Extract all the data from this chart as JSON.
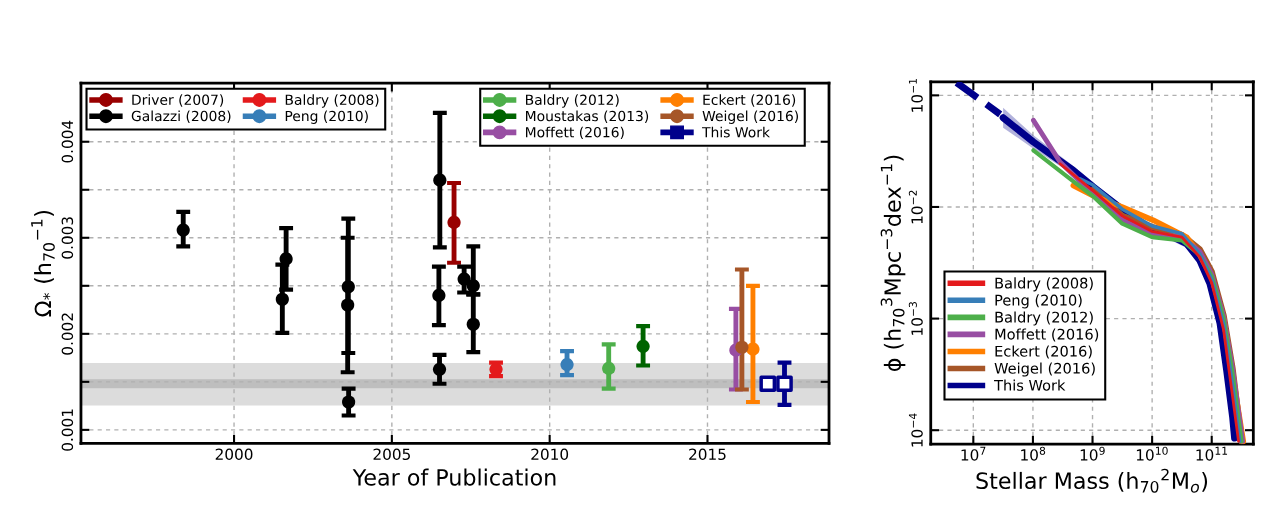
{
  "chart_data": [
    {
      "type": "scatter",
      "xlabel": "Year of Publication",
      "ylabel": "Ω$_{*}$ (h$_{70}$$^{−1}$)",
      "xlim": [
        1995.15,
        2018.85
      ],
      "ylim": [
        0.00086,
        0.00461
      ],
      "xticks": [
        2000,
        2005,
        2010,
        2015
      ],
      "yticks": [
        0.001,
        {
          "value": 0.0015,
          "label": null
        },
        0.002,
        {
          "value": 0.0025,
          "label": null
        },
        0.003,
        {
          "value": 0.0035,
          "label": null
        },
        0.004
      ],
      "grid": true,
      "legend": "top",
      "marker": "circle",
      "bands": [
        {
          "axis": "y",
          "from": 0.001253,
          "to": 0.001695,
          "color": "#dcdcdc"
        },
        {
          "axis": "y",
          "from": 0.001434,
          "to": 0.001528,
          "color": "#bebebe"
        }
      ],
      "series": [
        {
          "name": "Driver (2007)",
          "color": "#990000",
          "x": [
            2006.97
          ],
          "values": [
            0.00316
          ],
          "errors": [
            [
              0.00274,
              0.00357
            ]
          ]
        },
        {
          "name": "Galazzi (2008)",
          "color": "#000000",
          "x": [
            1998.39,
            2001.53,
            2001.65,
            2003.62,
            2003.6,
            2003.63,
            2006.52,
            2006.49,
            2006.51,
            2007.29,
            2007.58,
            2007.58
          ],
          "values": [
            0.00308,
            0.00236,
            0.00278,
            0.00249,
            0.0023,
            0.00129,
            0.0036,
            0.0024,
            0.00163,
            0.00257,
            0.0025,
            0.0021
          ],
          "errors": [
            [
              0.00291,
              0.00327
            ],
            [
              0.00201,
              0.00272
            ],
            [
              0.00246,
              0.0031
            ],
            [
              0.0018,
              0.0032
            ],
            [
              0.0016,
              0.003
            ],
            [
              0.00115,
              0.00143
            ],
            [
              0.0029,
              0.0043
            ],
            [
              0.00209,
              0.0027
            ],
            [
              0.00148,
              0.00178
            ],
            [
              0.00243,
              0.0027
            ],
            [
              0.00241,
              0.00291
            ],
            [
              0.00181,
              0.00241
            ]
          ]
        },
        {
          "name": "Baldry (2008)",
          "color": "#e41a1c",
          "x": [
            2008.3
          ],
          "values": [
            0.00163
          ],
          "errors": [
            [
              0.00156,
              0.0017
            ]
          ]
        },
        {
          "name": "Peng (2010)",
          "color": "#377eb8",
          "x": [
            2010.55
          ],
          "values": [
            0.00168
          ],
          "errors": [
            [
              0.00157,
              0.00182
            ]
          ]
        },
        {
          "name": "Baldry (2012)",
          "color": "#4daf4a",
          "x": [
            2011.87
          ],
          "values": [
            0.00164
          ],
          "errors": [
            [
              0.00143,
              0.00189
            ]
          ]
        },
        {
          "name": "Moustakas (2013)",
          "color": "#006400",
          "x": [
            2012.96
          ],
          "values": [
            0.00187
          ],
          "errors": [
            [
              0.00167,
              0.00208
            ]
          ]
        },
        {
          "name": "Moffett (2016)",
          "color": "#984ea3",
          "x": [
            2015.9
          ],
          "values": [
            0.00183
          ],
          "errors": [
            [
              0.00142,
              0.00226
            ]
          ]
        },
        {
          "name": "Eckert (2016)",
          "color": "#ff7f00",
          "x": [
            2016.44
          ],
          "values": [
            0.00184
          ],
          "errors": [
            [
              0.00129,
              0.0025
            ]
          ]
        },
        {
          "name": "Weigel (2016)",
          "color": "#a65628",
          "x": [
            2016.09
          ],
          "values": [
            0.00186
          ],
          "errors": [
            [
              0.00142,
              0.00267
            ]
          ]
        },
        {
          "name": "This Work",
          "color": "#00008b",
          "marker": "square",
          "x": [
            2016.91,
            2017.44
          ],
          "values": [
            0.00148,
            0.00148
          ],
          "errors": [
            [
              0.00143,
              0.00152
            ],
            [
              0.00126,
              0.0017
            ]
          ]
        }
      ]
    },
    {
      "type": "line",
      "xlabel": "Stellar Mass (h$_{70}$$^{2}$M$_{o}$)",
      "ylabel": "ϕ (h$_{70}$$^{3}$Mpc$^{−3}$dex$^{−1}$)",
      "log": "xy",
      "xlim": [
        1930000.0,
        499000000000.0
      ],
      "ylim": [
        7.5e-05,
        0.132
      ],
      "xticks": [
        {
          "value": 10000000.0,
          "label": "10$^{7}$"
        },
        {
          "value": 100000000.0,
          "label": "10$^{8}$"
        },
        {
          "value": 1000000000.0,
          "label": "10$^{9}$"
        },
        {
          "value": 10000000000.0,
          "label": "10$^{10}$"
        },
        {
          "value": 100000000000.0,
          "label": "10$^{11}$"
        }
      ],
      "yticks": [
        {
          "value": 0.0001,
          "label": "10$^{−4}$"
        },
        {
          "value": 0.001,
          "label": "10$^{−3}$"
        },
        {
          "value": 0.01,
          "label": "10$^{−2}$"
        },
        {
          "value": 0.1,
          "label": "10$^{−1}$"
        }
      ],
      "grid": true,
      "legend": "bottom left",
      "series": [
        {
          "name": "Baldry (2008)",
          "color": "#e41a1c",
          "x": [
            285000000.0,
            1000000000.0,
            3160000000.0,
            10000000000.0,
            31600000000.0,
            63100000000.0,
            100000000000.0,
            158000000000.0,
            224000000000.0,
            282000000000.0
          ],
          "values": [
            0.0244,
            0.0141,
            0.00832,
            0.00603,
            0.00537,
            0.00355,
            0.00209,
            0.000794,
            0.0002,
            7.94e-05
          ]
        },
        {
          "name": "Peng (2010)",
          "color": "#377eb8",
          "x": [
            617000000.0,
            1000000000.0,
            3160000000.0,
            10000000000.0,
            31600000000.0,
            63100000000.0,
            100000000000.0,
            158000000000.0,
            224000000000.0,
            295000000000.0
          ],
          "values": [
            0.0179,
            0.0158,
            0.00955,
            0.00676,
            0.00575,
            0.0038,
            0.00224,
            0.000891,
            0.000251,
            7.94e-05
          ]
        },
        {
          "name": "Baldry (2012)",
          "color": "#4daf4a",
          "x": [
            102000000.0,
            501000000.0,
            1000000000.0,
            3160000000.0,
            10000000000.0,
            31600000000.0,
            63100000000.0,
            100000000000.0,
            158000000000.0,
            224000000000.0,
            316000000000.0
          ],
          "values": [
            0.0322,
            0.0166,
            0.0126,
            0.00708,
            0.00537,
            0.00501,
            0.00372,
            0.0024,
            0.001,
            0.000316,
            7.94e-05
          ]
        },
        {
          "name": "Moffett (2016)",
          "color": "#984ea3",
          "x": [
            102000000.0,
            285000000.0,
            1000000000.0,
            3160000000.0,
            10000000000.0,
            31600000000.0,
            63100000000.0,
            100000000000.0,
            158000000000.0,
            224000000000.0,
            331000000000.0
          ],
          "values": [
            0.0597,
            0.0253,
            0.0132,
            0.00759,
            0.00575,
            0.00537,
            0.00398,
            0.00251,
            0.00105,
            0.000355,
            7.94e-05
          ]
        },
        {
          "name": "Eckert (2016)",
          "color": "#ff7f00",
          "x": [
            476000000.0,
            1030000000.0,
            3160000000.0,
            10500000000.0,
            38000000000.0,
            63100000000.0,
            100000000000.0,
            158000000000.0,
            224000000000.0,
            339000000000.0
          ],
          "values": [
            0.0156,
            0.0126,
            0.01,
            0.00759,
            0.00537,
            0.00372,
            0.00234,
            0.001,
            0.000316,
            7.94e-05
          ]
        },
        {
          "name": "Weigel (2016)",
          "color": "#a65628",
          "x": [
            1000000000.0,
            3160000000.0,
            10000000000.0,
            31600000000.0,
            63100000000.0,
            100000000000.0,
            158000000000.0,
            224000000000.0,
            316000000000.0
          ],
          "values": [
            0.0141,
            0.00832,
            0.00661,
            0.00562,
            0.00417,
            0.00263,
            0.00107,
            0.000355,
            7.94e-05
          ]
        },
        {
          "name": "This Work",
          "color": "#00008b",
          "x": [
            31600000.0,
            102000000.0,
            476000000.0,
            1030000000.0,
            3290000000.0,
            10500000000.0,
            22700000000.0,
            38000000000.0,
            63100000000.0,
            93300000000.0,
            138000000000.0,
            178000000000.0,
            224000000000.0,
            242000000000.0
          ],
          "values": [
            0.0631,
            0.0382,
            0.0213,
            0.0151,
            0.00933,
            0.00618,
            0.00538,
            0.0047,
            0.00333,
            0.00206,
            0.000904,
            0.000345,
            0.000132,
            8.5e-05
          ],
          "lower": [
            0.0513,
            0.0333,
            0.0194,
            0.0138,
            0.00851,
            0.00564,
            0.00491,
            0.00429,
            0.00304,
            0.00188,
            0.000825,
            0.000315,
            0.00012,
            7.7e-05
          ],
          "upper": [
            0.0776,
            0.0439,
            0.0233,
            0.0166,
            0.0102,
            0.00677,
            0.0059,
            0.00515,
            0.00365,
            0.00226,
            0.000991,
            0.000378,
            0.000145,
            9.3e-05
          ]
        },
        {
          "color": "#00008b",
          "line_style": "dashed",
          "x": [
            5250000.0,
            28200000.0
          ],
          "values": [
            0.13,
            0.0676
          ]
        }
      ]
    }
  ]
}
